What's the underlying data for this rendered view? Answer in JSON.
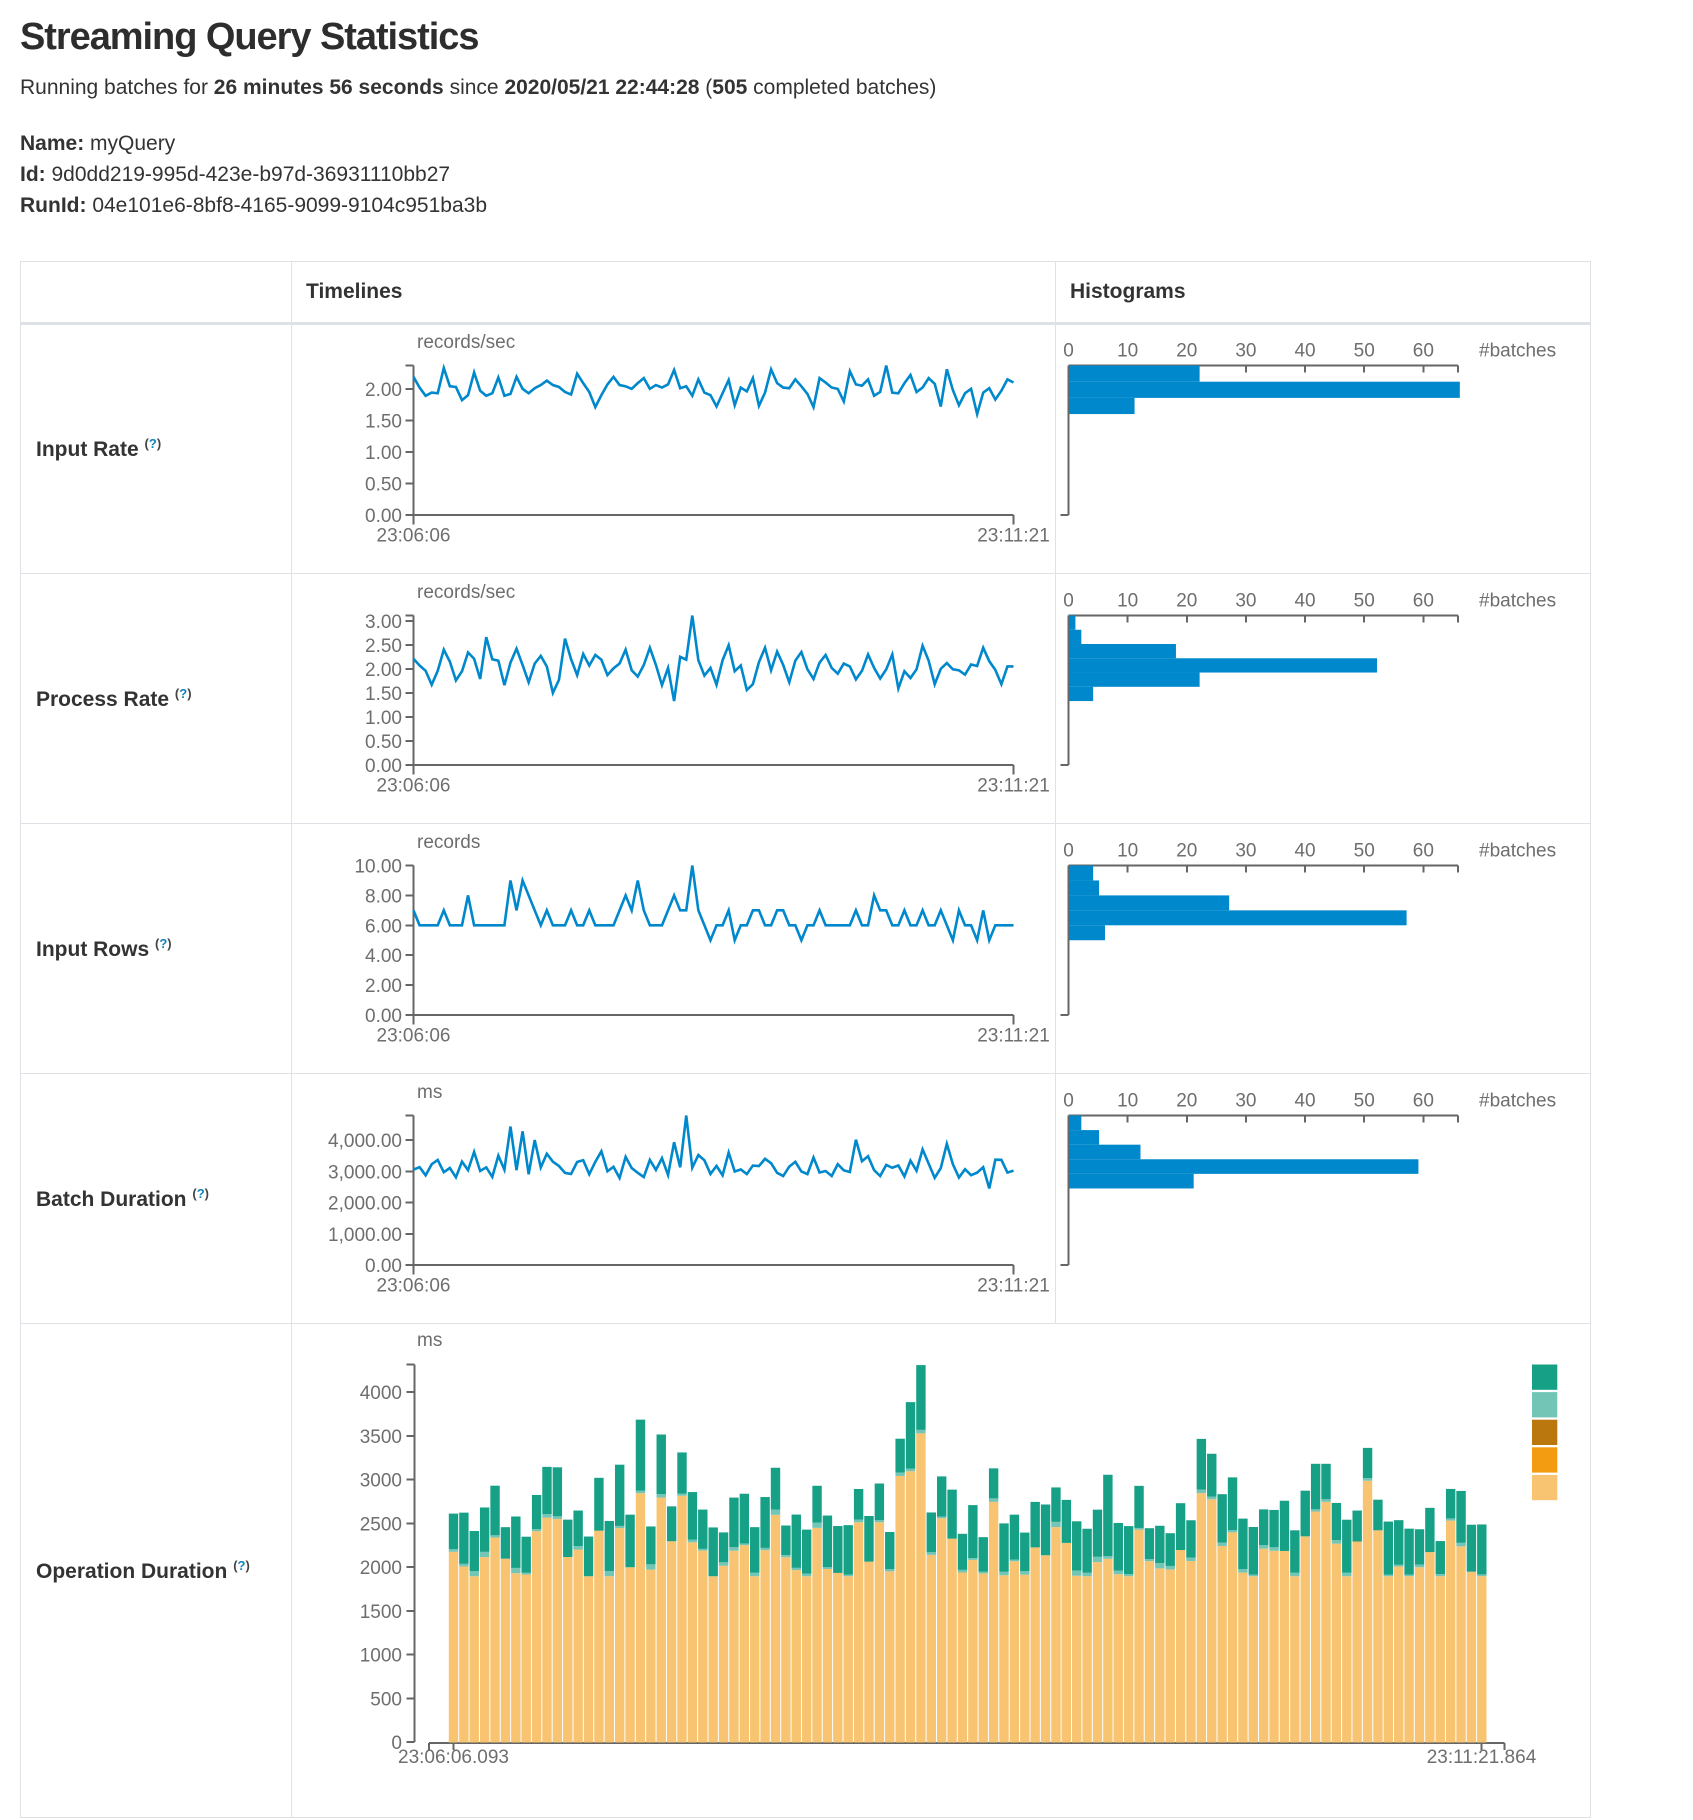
{
  "header": {
    "title": "Streaming Query Statistics",
    "running": {
      "pre": "Running batches for ",
      "duration": "26 minutes 56 seconds",
      "mid": " since ",
      "timestamp": "2020/05/21 22:44:28",
      "paren": " (",
      "batches": "505",
      "post": " completed batches)"
    }
  },
  "query": {
    "name_label": "Name:",
    "name": " myQuery",
    "id_label": "Id:",
    "id": " 9d0dd219-995d-423e-b97d-36931110bb27",
    "runid_label": "RunId:",
    "runid": " 04e101e6-8bf8-4165-9099-9104c951ba3b"
  },
  "table": {
    "header_timelines": "Timelines",
    "header_histograms": "Histograms"
  },
  "colors": {
    "timeline_line": "#0088cc",
    "histogram_bar": "#0088cc",
    "axis": "#666666",
    "tick_text": "#6e6e6e",
    "help_link": "#0f82c0",
    "operation_legend_top_to_bottom": [
      "#16A085",
      "#73C6B6",
      "#B9770E",
      "#F39C12",
      "#F8C471"
    ]
  },
  "chart_data": [
    {
      "row": "input-rate",
      "label": "Input Rate",
      "help": "(?)",
      "type": "line",
      "unit": "records/sec",
      "x_start_label": "23:06:06",
      "x_end_label": "23:11:21",
      "y_tick_labels": [
        "0.00",
        "0.50",
        "1.00",
        "1.50",
        "2.00"
      ],
      "y_tick_values": [
        0,
        0.5,
        1,
        1.5,
        2
      ],
      "values": [
        2.19,
        2.02,
        1.89,
        1.94,
        1.93,
        2.33,
        2.04,
        2.03,
        1.82,
        1.9,
        2.26,
        1.97,
        1.89,
        1.93,
        2.18,
        1.89,
        1.92,
        2.19,
        2.0,
        1.93,
        2.01,
        2.06,
        2.13,
        2.06,
        2.03,
        1.95,
        1.91,
        2.24,
        2.09,
        1.95,
        1.71,
        1.9,
        2.07,
        2.19,
        2.06,
        2.04,
        2.0,
        2.09,
        2.17,
        2.0,
        2.06,
        2.02,
        2.07,
        2.3,
        2.01,
        2.04,
        1.89,
        2.15,
        1.94,
        1.9,
        1.72,
        1.93,
        2.14,
        1.74,
        2.02,
        1.96,
        2.17,
        1.73,
        1.94,
        2.31,
        2.09,
        2.02,
        2.01,
        2.15,
        2.04,
        1.92,
        1.71,
        2.17,
        2.1,
        2.02,
        2.0,
        1.8,
        2.28,
        2.07,
        2.05,
        2.15,
        1.89,
        1.95,
        2.37,
        1.94,
        1.93,
        2.09,
        2.22,
        1.95,
        2.02,
        2.17,
        2.08,
        1.72,
        2.31,
        1.98,
        1.74,
        1.93,
        2.0,
        1.6,
        1.94,
        2.01,
        1.83,
        1.97,
        2.15,
        2.1
      ],
      "histogram": {
        "xlabel": "#batches",
        "tick_labels": [
          "0",
          "10",
          "20",
          "30",
          "40",
          "50",
          "60"
        ],
        "tick_values": [
          0,
          10,
          20,
          30,
          40,
          50,
          60
        ],
        "counts_top_to_bottom": [
          22,
          66,
          11
        ]
      }
    },
    {
      "row": "process-rate",
      "label": "Process Rate",
      "help": "(?)",
      "type": "line",
      "unit": "records/sec",
      "x_start_label": "23:06:06",
      "x_end_label": "23:11:21",
      "y_tick_labels": [
        "0.00",
        "0.50",
        "1.00",
        "1.50",
        "2.00",
        "2.50",
        "3.00"
      ],
      "y_tick_values": [
        0,
        0.5,
        1,
        1.5,
        2,
        2.5,
        3
      ],
      "values": [
        2.21,
        2.07,
        1.96,
        1.67,
        1.96,
        2.4,
        2.15,
        1.76,
        1.95,
        2.34,
        2.21,
        1.79,
        2.66,
        2.2,
        2.17,
        1.66,
        2.13,
        2.42,
        2.08,
        1.72,
        2.11,
        2.27,
        2.05,
        1.5,
        1.77,
        2.63,
        2.2,
        1.87,
        2.31,
        2.07,
        2.29,
        2.19,
        1.87,
        2.01,
        2.11,
        2.4,
        1.97,
        1.84,
        2.08,
        2.44,
        2.08,
        1.66,
        2.02,
        1.33,
        2.25,
        2.19,
        3.11,
        2.18,
        1.86,
        2.02,
        1.67,
        2.18,
        2.49,
        1.95,
        2.07,
        1.56,
        1.68,
        2.14,
        2.44,
        1.97,
        2.36,
        2.08,
        1.72,
        2.17,
        2.35,
        1.99,
        1.79,
        2.13,
        2.29,
        2.02,
        1.9,
        2.11,
        2.05,
        1.78,
        1.96,
        2.3,
        2.02,
        1.8,
        1.99,
        2.3,
        1.59,
        1.95,
        1.81,
        1.99,
        2.48,
        2.17,
        1.68,
        2.0,
        2.12,
        1.99,
        1.97,
        1.88,
        2.09,
        2.06,
        2.44,
        2.16,
        1.98,
        1.68,
        2.05,
        2.05
      ],
      "histogram": {
        "xlabel": "#batches",
        "tick_labels": [
          "0",
          "10",
          "20",
          "30",
          "40",
          "50",
          "60"
        ],
        "tick_values": [
          0,
          10,
          20,
          30,
          40,
          50,
          60
        ],
        "counts_top_to_bottom": [
          1,
          2,
          18,
          52,
          22,
          4
        ]
      }
    },
    {
      "row": "input-rows",
      "label": "Input Rows",
      "help": "(?)",
      "type": "line",
      "unit": "records",
      "x_start_label": "23:06:06",
      "x_end_label": "23:11:21",
      "y_tick_labels": [
        "0.00",
        "2.00",
        "4.00",
        "6.00",
        "8.00",
        "10.00"
      ],
      "y_tick_values": [
        0,
        2,
        4,
        6,
        8,
        10
      ],
      "values": [
        7,
        6,
        6,
        6,
        6,
        7,
        6,
        6,
        6,
        8,
        6,
        6,
        6,
        6,
        6,
        6,
        9,
        7,
        9,
        8,
        7,
        6,
        7,
        6,
        6,
        6,
        7,
        6,
        6,
        7,
        6,
        6,
        6,
        6,
        7,
        8,
        7,
        9,
        7,
        6,
        6,
        6,
        7,
        8,
        7,
        7,
        10,
        7,
        6,
        5,
        6,
        6,
        7,
        5,
        6,
        6,
        7,
        7,
        6,
        6,
        7,
        7,
        6,
        6,
        5,
        6,
        6,
        7,
        6,
        6,
        6,
        6,
        6,
        7,
        6,
        6,
        8,
        7,
        7,
        6,
        6,
        7,
        6,
        6,
        7,
        6,
        6,
        7,
        6,
        5,
        7,
        6,
        6,
        5,
        7,
        5,
        6,
        6,
        6,
        6
      ],
      "histogram": {
        "xlabel": "#batches",
        "tick_labels": [
          "0",
          "10",
          "20",
          "30",
          "40",
          "50",
          "60"
        ],
        "tick_values": [
          0,
          10,
          20,
          30,
          40,
          50,
          60
        ],
        "counts_top_to_bottom": [
          4,
          5,
          27,
          57,
          6
        ]
      }
    },
    {
      "row": "batch-duration",
      "label": "Batch Duration",
      "help": "(?)",
      "type": "line",
      "unit": "ms",
      "x_start_label": "23:06:06",
      "x_end_label": "23:11:21",
      "y_tick_labels": [
        "0.00",
        "1,000.00",
        "2,000.00",
        "3,000.00",
        "4,000.00"
      ],
      "y_tick_values": [
        0,
        1000,
        2000,
        3000,
        4000
      ],
      "values": [
        3050,
        3133,
        2870,
        3225,
        3363,
        2969,
        3104,
        2806,
        3308,
        3036,
        3620,
        3010,
        3125,
        2820,
        3500,
        3049,
        4430,
        3036,
        4280,
        2902,
        4000,
        3122,
        3560,
        3308,
        3170,
        2948,
        2915,
        3297,
        3356,
        2903,
        3303,
        3640,
        2999,
        3141,
        2785,
        3460,
        3103,
        2951,
        2813,
        3363,
        3043,
        3420,
        2879,
        3930,
        3127,
        4785,
        3113,
        3520,
        3351,
        2914,
        3172,
        2869,
        3600,
        2994,
        3057,
        2910,
        3183,
        3166,
        3400,
        3258,
        2950,
        2846,
        3149,
        3304,
        2995,
        2909,
        3440,
        2961,
        3008,
        2848,
        3225,
        3030,
        2978,
        4010,
        3321,
        3480,
        3035,
        2848,
        3201,
        3112,
        3185,
        2836,
        3341,
        3016,
        3700,
        3244,
        2789,
        3101,
        3880,
        3224,
        2799,
        3066,
        2874,
        2957,
        3129,
        2450,
        3369,
        3368,
        2958,
        3020
      ],
      "histogram": {
        "xlabel": "#batches",
        "tick_labels": [
          "0",
          "10",
          "20",
          "30",
          "40",
          "50",
          "60"
        ],
        "tick_values": [
          0,
          10,
          20,
          30,
          40,
          50,
          60
        ],
        "counts_top_to_bottom": [
          2,
          5,
          12,
          59,
          21
        ]
      }
    },
    {
      "row": "operation-duration",
      "label": "Operation Duration",
      "help": "(?)",
      "type": "stacked-bar",
      "unit": "ms",
      "x_start_label": "23:06:06.093",
      "x_end_label": "23:11:21.864",
      "y_tick_labels": [
        "0",
        "500",
        "1000",
        "1500",
        "2000",
        "2500",
        "3000",
        "3500",
        "4000"
      ],
      "y_tick_values": [
        0,
        500,
        1000,
        1500,
        2000,
        2500,
        3000,
        3500,
        4000
      ],
      "series_top_to_bottom": [
        {
          "name": "segment-teal",
          "color": "#16A085",
          "values": [
            407,
            585,
            457,
            507,
            567,
            360,
            588,
            412,
            389,
            540,
            560,
            427,
            406,
            454,
            604,
            572,
            700,
            601,
            810,
            433,
            680,
            399,
            470,
            544,
            449,
            558,
            341,
            567,
            568,
            521,
            581,
            478,
            338,
            609,
            503,
            421,
            591,
            536,
            564,
            350,
            522,
            417,
            425,
            386,
            760,
            740,
            455,
            458,
            560,
            412,
            606,
            395,
            343,
            553,
            513,
            441,
            520,
            580,
            393,
            492,
            562,
            503,
            539,
            930,
            546,
            548,
            481,
            352,
            427,
            374,
            535,
            426,
            580,
            490,
            552,
            603,
            577,
            543,
            409,
            427,
            574,
            485,
            522,
            520,
            405,
            425,
            606,
            354,
            345,
            350,
            605,
            510,
            524,
            404,
            506,
            377,
            337,
            593,
            537,
            571
          ]
        },
        {
          "name": "segment-light-teal",
          "color": "#73C6B6",
          "values": [
            30,
            30,
            60,
            60,
            25,
            0,
            60,
            20,
            25,
            40,
            30,
            0,
            40,
            0,
            0,
            60,
            25,
            0,
            30,
            60,
            40,
            0,
            25,
            30,
            20,
            0,
            40,
            40,
            20,
            40,
            25,
            60,
            25,
            25,
            30,
            60,
            20,
            0,
            20,
            30,
            0,
            25,
            25,
            40,
            30,
            40,
            30,
            20,
            0,
            30,
            20,
            20,
            40,
            40,
            20,
            40,
            0,
            0,
            60,
            0,
            60,
            40,
            60,
            30,
            40,
            25,
            20,
            25,
            60,
            40,
            0,
            40,
            40,
            30,
            40,
            25,
            40,
            20,
            40,
            40,
            0,
            40,
            0,
            25,
            30,
            40,
            40,
            0,
            30,
            0,
            20,
            20,
            20,
            30,
            0,
            25,
            25,
            40,
            0,
            20
          ]
        },
        {
          "name": "segment-brown",
          "color": "#B9770E",
          "values": [
            0,
            0,
            0,
            0,
            0,
            0,
            0,
            0,
            0,
            0,
            0,
            0,
            0,
            0,
            0,
            0,
            0,
            0,
            0,
            0,
            0,
            0,
            0,
            0,
            0,
            0,
            0,
            0,
            0,
            0,
            0,
            0,
            0,
            0,
            0,
            0,
            0,
            0,
            0,
            0,
            0,
            0,
            0,
            0,
            0,
            0,
            0,
            0,
            0,
            0,
            0,
            0,
            0,
            0,
            0,
            0,
            0,
            0,
            0,
            0,
            0,
            0,
            0,
            0,
            0,
            0,
            0,
            0,
            0,
            0,
            0,
            0,
            0,
            0,
            0,
            0,
            0,
            0,
            0,
            0,
            0,
            0,
            0,
            0,
            0,
            0,
            0,
            0,
            0,
            0,
            0,
            0,
            0,
            0,
            0,
            0,
            0,
            0,
            0,
            0
          ]
        },
        {
          "name": "segment-orange",
          "color": "#F39C12",
          "values": [
            0,
            0,
            0,
            0,
            0,
            0,
            0,
            0,
            0,
            0,
            0,
            0,
            0,
            0,
            0,
            0,
            0,
            0,
            0,
            0,
            0,
            0,
            0,
            0,
            0,
            0,
            0,
            0,
            0,
            0,
            0,
            0,
            0,
            0,
            0,
            0,
            0,
            0,
            0,
            0,
            0,
            0,
            0,
            0,
            0,
            0,
            0,
            0,
            0,
            0,
            0,
            0,
            0,
            0,
            0,
            0,
            0,
            0,
            0,
            0,
            0,
            0,
            0,
            0,
            0,
            0,
            0,
            0,
            0,
            0,
            0,
            0,
            0,
            0,
            0,
            0,
            0,
            0,
            0,
            0,
            0,
            0,
            0,
            0,
            0,
            0,
            0,
            0,
            0,
            0,
            0,
            0,
            0,
            0,
            0,
            0,
            0,
            0,
            0,
            0
          ]
        },
        {
          "name": "segment-tan",
          "color": "#F8C471",
          "values": [
            2179,
            2012,
            1900,
            2119,
            2343,
            2101,
            1935,
            1920,
            2415,
            2570,
            2555,
            2120,
            2205,
            1900,
            2421,
            1900,
            2450,
            2003,
            2850,
            1976,
            2800,
            2300,
            2820,
            2288,
            2193,
            1900,
            2020,
            2192,
            2255,
            1900,
            2199,
            2602,
            2117,
            1971,
            1900,
            2453,
            1983,
            1938,
            1900,
            2517,
            2067,
            2518,
            1956,
            3046,
            3100,
            3533,
            2144,
            2563,
            2330,
            1943,
            2087,
            1932,
            2750,
            1911,
            2071,
            1918,
            2230,
            2140,
            2462,
            2281,
            1906,
            1900,
            2062,
            2100,
            1923,
            1900,
            2432,
            2072,
            1990,
            1978,
            2200,
            2074,
            2850,
            2780,
            2246,
            2402,
            1942,
            1900,
            2215,
            2191,
            2189,
            1900,
            2356,
            2640,
            2750,
            2273,
            1900,
            2297,
            2992,
            2425,
            1900,
            2011,
            1900,
            2003,
            2176,
            1900,
            2536,
            2242,
            1952,
            1901
          ]
        }
      ]
    }
  ]
}
